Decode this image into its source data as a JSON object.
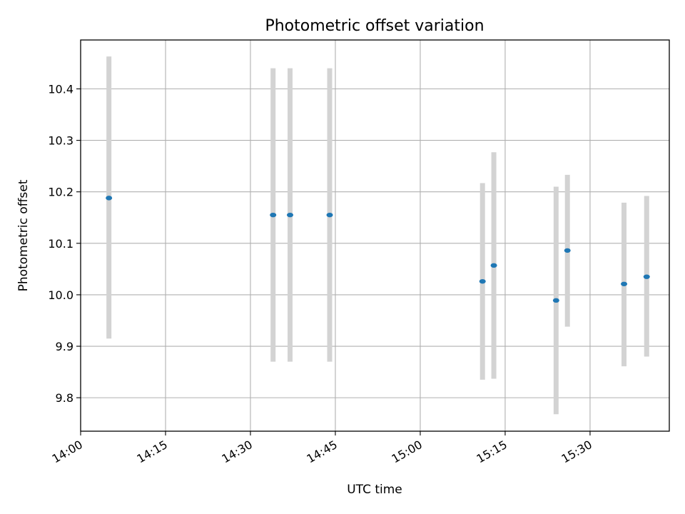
{
  "chart_data": {
    "type": "scatter",
    "title": "Photometric offset variation",
    "xlabel": "UTC time",
    "ylabel": "Photometric offset",
    "x_tick_labels": [
      "14:00",
      "14:15",
      "14:30",
      "14:45",
      "15:00",
      "15:15",
      "15:30"
    ],
    "y_tick_labels": [
      "9.8",
      "9.9",
      "10.0",
      "10.1",
      "10.2",
      "10.3",
      "10.4"
    ],
    "xlim": [
      "14:00",
      "15:44"
    ],
    "ylim": [
      9.735,
      10.495
    ],
    "grid": true,
    "point_color": "#1f77b4",
    "errorbar_color": "#d3d3d3",
    "series": [
      {
        "x": [
          "14:05",
          "14:34",
          "14:37",
          "14:44",
          "15:11",
          "15:13",
          "15:24",
          "15:26",
          "15:36",
          "15:40"
        ],
        "y": [
          10.188,
          10.155,
          10.155,
          10.155,
          10.026,
          10.057,
          9.989,
          10.086,
          10.021,
          10.035
        ],
        "error_low": [
          9.915,
          9.87,
          9.87,
          9.87,
          9.835,
          9.837,
          9.768,
          9.938,
          9.861,
          9.88
        ],
        "error_high": [
          10.463,
          10.44,
          10.44,
          10.44,
          10.217,
          10.277,
          10.21,
          10.233,
          10.179,
          10.192
        ]
      }
    ]
  }
}
